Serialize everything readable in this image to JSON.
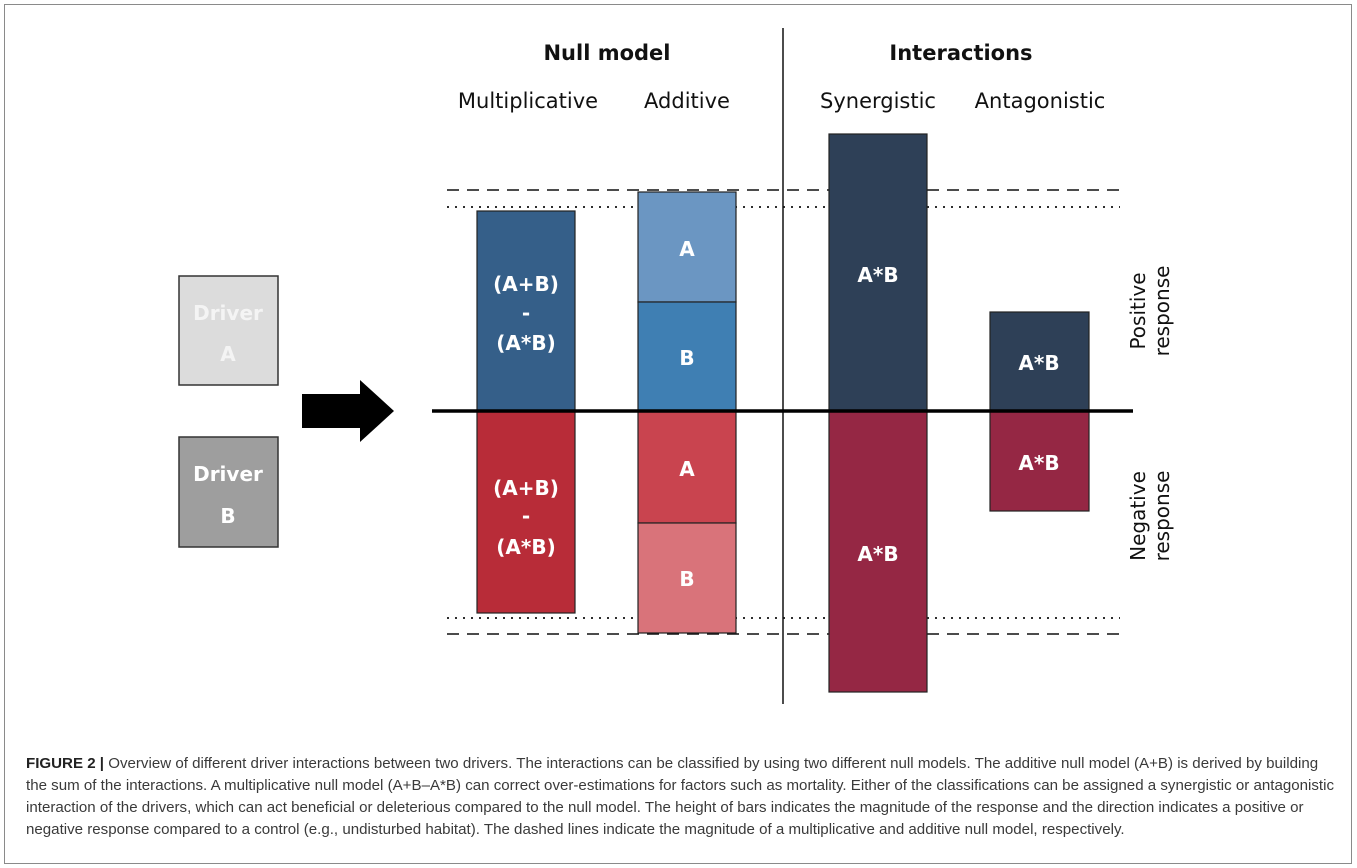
{
  "headers": {
    "null_model": "Null model",
    "interactions": "Interactions"
  },
  "subheaders": {
    "multiplicative": "Multiplicative",
    "additive": "Additive",
    "synergistic": "Synergistic",
    "antagonistic": "Antagonistic"
  },
  "drivers": {
    "a": {
      "line1": "Driver",
      "line2": "A"
    },
    "b": {
      "line1": "Driver",
      "line2": "B"
    }
  },
  "bars": {
    "multiplicative_pos": {
      "line1": "(A+B)",
      "line2": "-",
      "line3": "(A*B)"
    },
    "multiplicative_neg": {
      "line1": "(A+B)",
      "line2": "-",
      "line3": "(A*B)"
    },
    "additive_pos_a": "A",
    "additive_pos_b": "B",
    "additive_neg_a": "A",
    "additive_neg_b": "B",
    "synergistic_pos": "A*B",
    "synergistic_neg": "A*B",
    "antagonistic_pos": "A*B",
    "antagonistic_neg": "A*B"
  },
  "side_labels": {
    "positive_1": "Positive",
    "positive_2": "response",
    "negative_1": "Negative",
    "negative_2": "response"
  },
  "colors": {
    "blue_dark": "#355f89",
    "blue_light": "#6b96c2",
    "blue_mid": "#3f7fb3",
    "navy": "#2e4057",
    "red": "#b82c38",
    "red_mid": "#c9444f",
    "red_light": "#d9737a",
    "crimson": "#952744",
    "driver_a_fill": "#dcdcdc",
    "driver_a_text": "#f4f4f4",
    "driver_b_fill": "#9e9e9e",
    "driver_b_text": "#ffffff"
  },
  "caption": {
    "figure_label": "FIGURE 2 |",
    "text": " Overview of different driver interactions between two drivers. The interactions can be classified by using two different null models. The additive null model (A+B) is derived by building the sum of the interactions. A multiplicative null model (A+B–A*B) can correct over-estimations for factors such as mortality. Either of the classifications can be assigned a synergistic or antagonistic interaction of the drivers, which can act beneficial or deleterious compared to the null model. The height of bars indicates the magnitude of the response and the direction indicates a positive or negative response compared to a control (e.g., undisturbed habitat). The dashed lines indicate the magnitude of a multiplicative and additive null model, respectively."
  }
}
